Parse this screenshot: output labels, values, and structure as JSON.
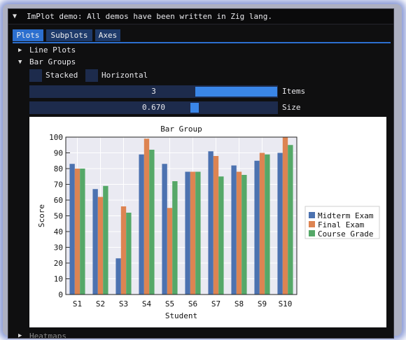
{
  "window": {
    "title": "ImPlot demo: All demos have been written in Zig lang."
  },
  "tabs": [
    {
      "label": "Plots",
      "active": true
    },
    {
      "label": "Subplots",
      "active": false
    },
    {
      "label": "Axes",
      "active": false
    }
  ],
  "tree": {
    "line_plots": "Line Plots",
    "bar_groups": "Bar Groups",
    "heatmaps": "Heatmaps"
  },
  "controls": {
    "stacked_label": "Stacked",
    "stacked_checked": false,
    "horizontal_label": "Horizontal",
    "horizontal_checked": false,
    "items_value": "3",
    "items_label": "Items",
    "items_fraction": 0.33,
    "size_value": "0.670",
    "size_label": "Size",
    "size_fraction": 0.67
  },
  "colors": {
    "accent": "#2c6fcf",
    "frame_bg": "#1d2b4c",
    "series": [
      "#4c72b0",
      "#dd8452",
      "#55a868"
    ]
  },
  "chart_data": {
    "type": "bar",
    "title": "Bar Group",
    "xlabel": "Student",
    "ylabel": "Score",
    "categories": [
      "S1",
      "S2",
      "S3",
      "S4",
      "S5",
      "S6",
      "S7",
      "S8",
      "S9",
      "S10"
    ],
    "ylim": [
      0,
      100
    ],
    "yticks": [
      0,
      10,
      20,
      30,
      40,
      50,
      60,
      70,
      80,
      90,
      100
    ],
    "grid": true,
    "legend_position": "right",
    "series": [
      {
        "name": "Midterm Exam",
        "values": [
          83,
          67,
          23,
          89,
          83,
          78,
          91,
          82,
          85,
          90
        ]
      },
      {
        "name": "Final Exam",
        "values": [
          80,
          62,
          56,
          99,
          55,
          78,
          88,
          78,
          90,
          100
        ]
      },
      {
        "name": "Course Grade",
        "values": [
          80,
          69,
          52,
          92,
          72,
          78,
          75,
          76,
          89,
          95
        ]
      }
    ]
  }
}
